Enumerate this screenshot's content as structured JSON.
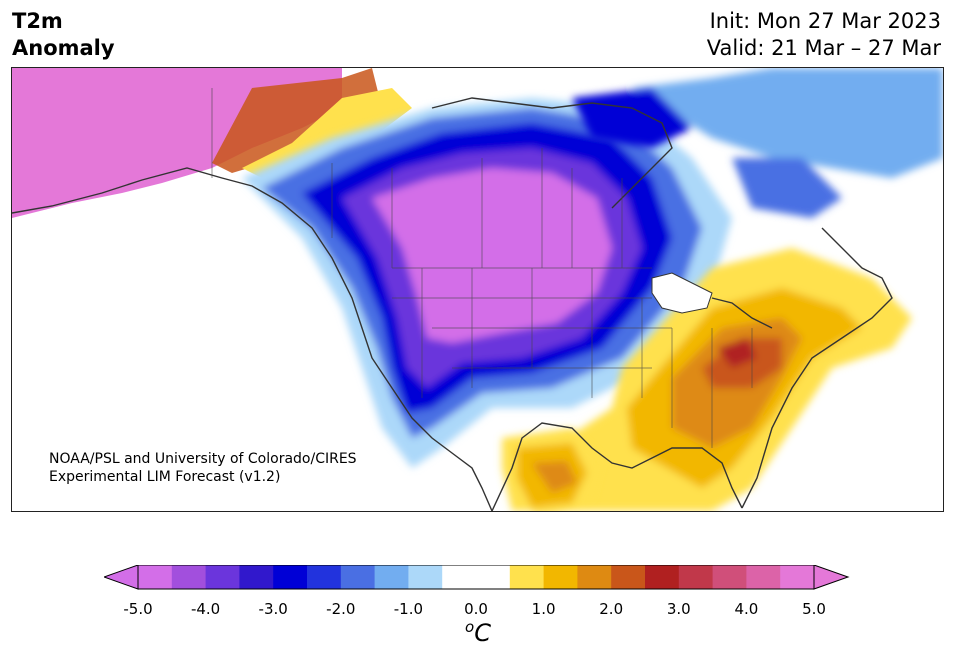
{
  "header": {
    "title_line1": "T2m",
    "title_line2": "Anomaly",
    "init_text": "Init: Mon 27 Mar 2023",
    "valid_text": "Valid: 21 Mar – 27 Mar"
  },
  "credit": {
    "line1": "NOAA/PSL and University of Colorado/CIRES",
    "line2": "Experimental LIM Forecast (v1.2)"
  },
  "colorbar": {
    "unit_base": "C",
    "unit_sup": "o",
    "ticks": [
      "-5.0",
      "-4.0",
      "-3.0",
      "-2.0",
      "-1.0",
      "0.0",
      "1.0",
      "2.0",
      "3.0",
      "4.0",
      "5.0"
    ],
    "colors": [
      "#d36ee8",
      "#a24fdd",
      "#6b35dc",
      "#3118cc",
      "#0000d6",
      "#2233dd",
      "#4a6fe3",
      "#72adf0",
      "#acd8f9",
      "#ffffff",
      "#ffffff",
      "#ffe14d",
      "#f2b700",
      "#de8a12",
      "#c9561a",
      "#b02020",
      "#c1384a",
      "#d04f7a",
      "#dc63a8",
      "#e478d8"
    ],
    "extend_low_color": "#d36ee8",
    "extend_high_color": "#e478d8"
  },
  "map": {
    "ocean_color": "#ffffff",
    "coastline_color": "#333333"
  }
}
